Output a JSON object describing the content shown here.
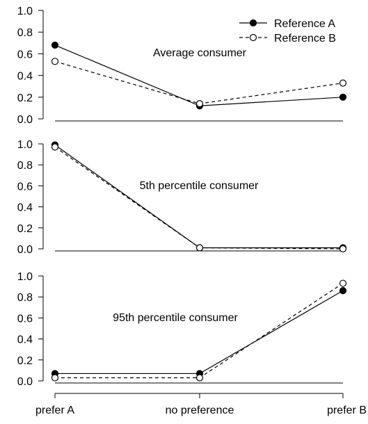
{
  "chart_data": {
    "type": "line",
    "categories": [
      "prefer A",
      "no preference",
      "prefer B"
    ],
    "legend": {
      "position": "top-right",
      "entries": [
        "Reference A",
        "Reference B"
      ]
    },
    "panels": [
      {
        "annotation": "Average consumer",
        "ylim": [
          0,
          1.0
        ],
        "yticks": [
          "0.0",
          "0.2",
          "0.4",
          "0.6",
          "0.8",
          "1.0"
        ],
        "series": [
          {
            "name": "Reference A",
            "values": [
              0.68,
              0.12,
              0.2
            ]
          },
          {
            "name": "Reference B",
            "values": [
              0.53,
              0.14,
              0.33
            ]
          }
        ]
      },
      {
        "annotation": "5th percentile consumer",
        "ylim": [
          0,
          1.0
        ],
        "yticks": [
          "0.0",
          "0.2",
          "0.4",
          "0.6",
          "0.8",
          "1.0"
        ],
        "series": [
          {
            "name": "Reference A",
            "values": [
              0.99,
              0.01,
              0.01
            ]
          },
          {
            "name": "Reference B",
            "values": [
              0.97,
              0.01,
              0.0
            ]
          }
        ]
      },
      {
        "annotation": "95th percentile consumer",
        "ylim": [
          0,
          1.0
        ],
        "yticks": [
          "0.0",
          "0.2",
          "0.4",
          "0.6",
          "0.8",
          "1.0"
        ],
        "series": [
          {
            "name": "Reference A",
            "values": [
              0.07,
              0.07,
              0.86
            ]
          },
          {
            "name": "Reference B",
            "values": [
              0.03,
              0.03,
              0.93
            ]
          }
        ]
      }
    ]
  }
}
